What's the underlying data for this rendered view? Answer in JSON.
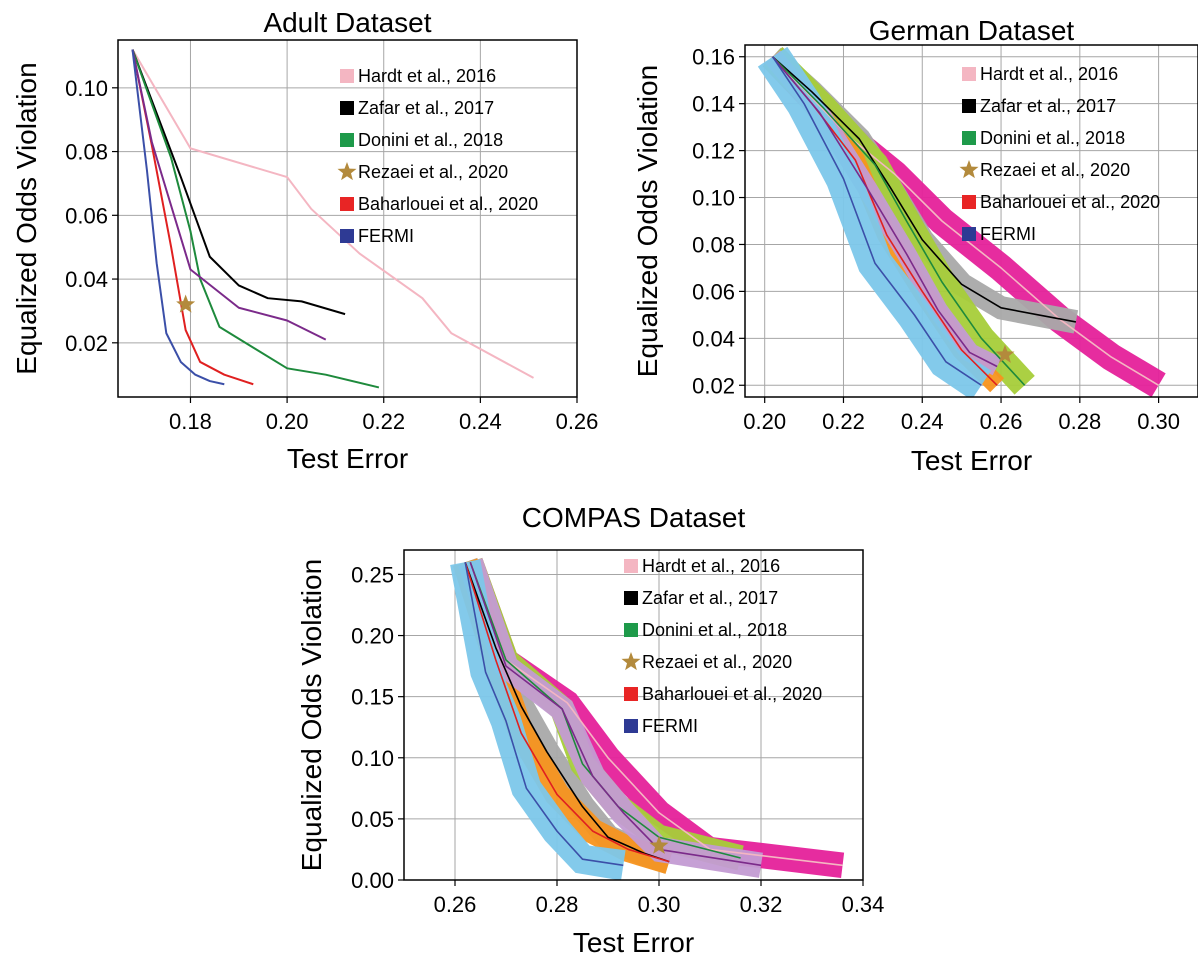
{
  "chart_data": [
    {
      "type": "line",
      "title": "Adult Dataset",
      "xlabel": "Test Error",
      "ylabel": "Equalized Odds Violation",
      "xlim": [
        0.165,
        0.26
      ],
      "ylim": [
        0.003,
        0.115
      ],
      "xticks": [
        0.18,
        0.2,
        0.22,
        0.24,
        0.26
      ],
      "xtick_labels": [
        "0.18",
        "0.20",
        "0.22",
        "0.24",
        "0.26"
      ],
      "yticks": [
        0.02,
        0.04,
        0.06,
        0.08,
        0.1
      ],
      "ytick_labels": [
        "0.02",
        "0.04",
        "0.06",
        "0.08",
        "0.10"
      ],
      "grid": true,
      "legend_position": "top-right",
      "series": [
        {
          "name": "Hardt et al., 2016",
          "color": "#f4b6c2",
          "x": [
            0.168,
            0.18,
            0.2,
            0.205,
            0.215,
            0.228,
            0.234,
            0.251
          ],
          "y": [
            0.112,
            0.081,
            0.072,
            0.062,
            0.048,
            0.034,
            0.023,
            0.009
          ]
        },
        {
          "name": "Zafar et al., 2017",
          "color": "#000000",
          "x": [
            0.168,
            0.178,
            0.184,
            0.19,
            0.196,
            0.203,
            0.212
          ],
          "y": [
            0.112,
            0.072,
            0.047,
            0.038,
            0.034,
            0.033,
            0.029
          ]
        },
        {
          "name": "Donini et al., 2018",
          "color": "#1e8a3c",
          "x": [
            0.168,
            0.176,
            0.18,
            0.182,
            0.186,
            0.2,
            0.208,
            0.219
          ],
          "y": [
            0.112,
            0.078,
            0.055,
            0.04,
            0.025,
            0.012,
            0.01,
            0.006
          ]
        },
        {
          "name": "Baharlouei et al., 2020",
          "color": "#e02020",
          "x": [
            0.168,
            0.172,
            0.176,
            0.179,
            0.182,
            0.187,
            0.193
          ],
          "y": [
            0.112,
            0.082,
            0.05,
            0.024,
            0.014,
            0.01,
            0.007
          ]
        },
        {
          "name": "Purple (unlabeled)",
          "color": "#7b2a8a",
          "x": [
            0.168,
            0.172,
            0.18,
            0.19,
            0.2,
            0.208
          ],
          "y": [
            0.112,
            0.083,
            0.043,
            0.031,
            0.027,
            0.021
          ]
        },
        {
          "name": "FERMI",
          "color": "#3b4fa8",
          "x": [
            0.168,
            0.171,
            0.173,
            0.175,
            0.178,
            0.181,
            0.184,
            0.187
          ],
          "y": [
            0.112,
            0.074,
            0.045,
            0.023,
            0.014,
            0.01,
            0.008,
            0.007
          ]
        }
      ],
      "markers": [
        {
          "name": "Rezaei et al., 2020",
          "color": "#b38a3c",
          "x": 0.179,
          "y": 0.032
        }
      ],
      "legend": [
        {
          "label": "Hardt et al., 2016",
          "color": "#f4b6c2",
          "kind": "square"
        },
        {
          "label": "Zafar et al., 2017",
          "color": "#000000",
          "kind": "square"
        },
        {
          "label": "Donini et al., 2018",
          "color": "#1e9a4a",
          "kind": "square"
        },
        {
          "label": "Rezaei et al., 2020",
          "color": "#b38a3c",
          "kind": "star"
        },
        {
          "label": "Baharlouei et al., 2020",
          "color": "#e82525",
          "kind": "square"
        },
        {
          "label": "FERMI",
          "color": "#2e3a94",
          "kind": "square"
        }
      ]
    },
    {
      "type": "line",
      "title": "German Dataset",
      "xlabel": "Test Error",
      "ylabel": "Equalized Odds Violation",
      "xlim": [
        0.195,
        0.31
      ],
      "ylim": [
        0.015,
        0.165
      ],
      "xticks": [
        0.2,
        0.22,
        0.24,
        0.26,
        0.28,
        0.3
      ],
      "xtick_labels": [
        "0.20",
        "0.22",
        "0.24",
        "0.26",
        "0.28",
        "0.30"
      ],
      "yticks": [
        0.02,
        0.04,
        0.06,
        0.08,
        0.1,
        0.12,
        0.14,
        0.16
      ],
      "ytick_labels": [
        "0.02",
        "0.04",
        "0.06",
        "0.08",
        "0.10",
        "0.12",
        "0.14",
        "0.16"
      ],
      "grid": true,
      "legend_position": "top-right",
      "series": [
        {
          "name": "Hardt et al., 2016",
          "color": "#f4b6c2",
          "band": "#e5219a",
          "width": 0.0035,
          "x": [
            0.202,
            0.222,
            0.233,
            0.245,
            0.26,
            0.275,
            0.288,
            0.3
          ],
          "y": [
            0.16,
            0.125,
            0.11,
            0.09,
            0.07,
            0.048,
            0.032,
            0.02
          ]
        },
        {
          "name": "Zafar et al., 2017",
          "color": "#000000",
          "band": "#a9a9a9",
          "width": 0.003,
          "x": [
            0.202,
            0.212,
            0.224,
            0.232,
            0.24,
            0.25,
            0.26,
            0.279
          ],
          "y": [
            0.16,
            0.145,
            0.125,
            0.104,
            0.082,
            0.063,
            0.053,
            0.047
          ]
        },
        {
          "name": "Donini et al., 2018",
          "color": "#1e8a3c",
          "band": "#a6ce39",
          "width": 0.0035,
          "x": [
            0.202,
            0.215,
            0.228,
            0.236,
            0.245,
            0.255,
            0.266
          ],
          "y": [
            0.16,
            0.138,
            0.114,
            0.09,
            0.064,
            0.04,
            0.02
          ]
        },
        {
          "name": "Baharlouei et al., 2020",
          "color": "#e02020",
          "band": "#f7941d",
          "width": 0.0025,
          "x": [
            0.202,
            0.212,
            0.223,
            0.231,
            0.24,
            0.25,
            0.259
          ],
          "y": [
            0.16,
            0.14,
            0.116,
            0.084,
            0.06,
            0.035,
            0.02
          ]
        },
        {
          "name": "Purple (unlabeled)",
          "color": "#7b2a8a",
          "band": "#c39bd3",
          "width": 0.0025,
          "x": [
            0.202,
            0.214,
            0.226,
            0.236,
            0.244,
            0.252,
            0.259
          ],
          "y": [
            0.16,
            0.136,
            0.104,
            0.076,
            0.052,
            0.034,
            0.028
          ]
        },
        {
          "name": "FERMI",
          "color": "#3b4fa8",
          "band": "#7cc7ea",
          "width": 0.0045,
          "x": [
            0.202,
            0.21,
            0.22,
            0.228,
            0.238,
            0.246,
            0.255
          ],
          "y": [
            0.16,
            0.14,
            0.108,
            0.072,
            0.05,
            0.03,
            0.02
          ]
        }
      ],
      "markers": [
        {
          "name": "Rezaei et al., 2020",
          "color": "#b38a3c",
          "x": 0.261,
          "y": 0.033
        }
      ],
      "legend": [
        {
          "label": "Hardt et al., 2016",
          "color": "#f4b6c2",
          "kind": "square"
        },
        {
          "label": "Zafar et al., 2017",
          "color": "#000000",
          "kind": "square"
        },
        {
          "label": "Donini et al., 2018",
          "color": "#1e9a4a",
          "kind": "square"
        },
        {
          "label": "Rezaei et al., 2020",
          "color": "#b38a3c",
          "kind": "star"
        },
        {
          "label": "Baharlouei et al., 2020",
          "color": "#e82525",
          "kind": "square"
        },
        {
          "label": "FERMI",
          "color": "#2e3a94",
          "kind": "square"
        }
      ]
    },
    {
      "type": "line",
      "title": "COMPAS Dataset",
      "xlabel": "Test Error",
      "ylabel": "Equalized Odds Violation",
      "xlim": [
        0.25,
        0.34
      ],
      "ylim": [
        0.0,
        0.27
      ],
      "xticks": [
        0.26,
        0.28,
        0.3,
        0.32,
        0.34
      ],
      "xtick_labels": [
        "0.26",
        "0.28",
        "0.30",
        "0.32",
        "0.34"
      ],
      "yticks": [
        0.0,
        0.05,
        0.1,
        0.15,
        0.2,
        0.25
      ],
      "ytick_labels": [
        "0.00",
        "0.05",
        "0.10",
        "0.15",
        "0.20",
        "0.25"
      ],
      "grid": true,
      "legend_position": "top-right",
      "series": [
        {
          "name": "Hardt et al., 2016",
          "color": "#f4b6c2",
          "band": "#e5219a",
          "width": 0.0025,
          "x": [
            0.263,
            0.27,
            0.282,
            0.29,
            0.3,
            0.31,
            0.336
          ],
          "y": [
            0.26,
            0.18,
            0.145,
            0.1,
            0.055,
            0.025,
            0.012
          ]
        },
        {
          "name": "Zafar et al., 2017",
          "color": "#000000",
          "band": "#a9a9a9",
          "width": 0.0025,
          "x": [
            0.262,
            0.268,
            0.273,
            0.278,
            0.285,
            0.29,
            0.297,
            0.302
          ],
          "y": [
            0.26,
            0.19,
            0.142,
            0.105,
            0.06,
            0.035,
            0.022,
            0.015
          ]
        },
        {
          "name": "Donini et al., 2018",
          "color": "#1e8a3c",
          "band": "#a6ce39",
          "width": 0.0025,
          "x": [
            0.263,
            0.27,
            0.281,
            0.285,
            0.292,
            0.3,
            0.316
          ],
          "y": [
            0.26,
            0.18,
            0.14,
            0.095,
            0.06,
            0.035,
            0.018
          ]
        },
        {
          "name": "Baharlouei et al., 2020",
          "color": "#e02020",
          "band": "#f7941d",
          "width": 0.0025,
          "x": [
            0.262,
            0.268,
            0.273,
            0.28,
            0.287,
            0.294,
            0.302
          ],
          "y": [
            0.26,
            0.18,
            0.12,
            0.07,
            0.04,
            0.025,
            0.015
          ]
        },
        {
          "name": "Purple (unlabeled)",
          "color": "#7b2a8a",
          "band": "#c39bd3",
          "width": 0.0025,
          "x": [
            0.263,
            0.27,
            0.281,
            0.287,
            0.293,
            0.3,
            0.32
          ],
          "y": [
            0.26,
            0.175,
            0.14,
            0.085,
            0.055,
            0.025,
            0.012
          ]
        },
        {
          "name": "FERMI",
          "color": "#3b4fa8",
          "band": "#7cc7ea",
          "width": 0.003,
          "x": [
            0.262,
            0.266,
            0.27,
            0.274,
            0.28,
            0.285,
            0.293
          ],
          "y": [
            0.26,
            0.17,
            0.13,
            0.075,
            0.04,
            0.017,
            0.012
          ]
        }
      ],
      "markers": [
        {
          "name": "Rezaei et al., 2020",
          "color": "#b38a3c",
          "x": 0.3,
          "y": 0.028
        }
      ],
      "legend": [
        {
          "label": "Hardt et al., 2016",
          "color": "#f4b6c2",
          "kind": "square"
        },
        {
          "label": "Zafar et al., 2017",
          "color": "#000000",
          "kind": "square"
        },
        {
          "label": "Donini et al., 2018",
          "color": "#1e9a4a",
          "kind": "square"
        },
        {
          "label": "Rezaei et al., 2020",
          "color": "#b38a3c",
          "kind": "star"
        },
        {
          "label": "Baharlouei et al., 2020",
          "color": "#e82525",
          "kind": "square"
        },
        {
          "label": "FERMI",
          "color": "#2e3a94",
          "kind": "square"
        }
      ]
    }
  ]
}
